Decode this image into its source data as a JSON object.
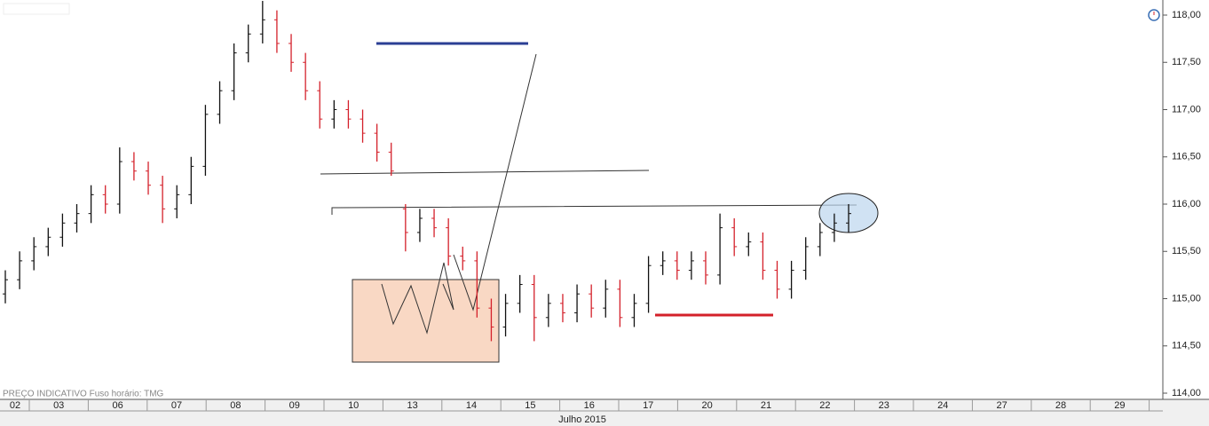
{
  "chart_data": {
    "type": "ohlc",
    "footnote": "PREÇO INDICATIVO   Fuso horário: TMG",
    "x_labels": [
      "02",
      "03",
      "06",
      "07",
      "08",
      "09",
      "10",
      "13",
      "14",
      "15",
      "16",
      "17",
      "20",
      "21",
      "22",
      "23",
      "24",
      "27",
      "28",
      "29"
    ],
    "x_title": "Julho 2015",
    "ylim": [
      114,
      118
    ],
    "yticks": [
      {
        "value": 114,
        "label": "114,00"
      },
      {
        "value": 114.5,
        "label": "114,50"
      },
      {
        "value": 115,
        "label": "115,00"
      },
      {
        "value": 115.5,
        "label": "115,50"
      },
      {
        "value": 116,
        "label": "116,00"
      },
      {
        "value": 116.5,
        "label": "116,50"
      },
      {
        "value": 117,
        "label": "117,00"
      },
      {
        "value": 117.5,
        "label": "117,50"
      },
      {
        "value": 118,
        "label": "118,00"
      }
    ],
    "up_color": "#111111",
    "down_color": "#d4202a",
    "open": [
      115.05,
      115.2,
      115.4,
      115.55,
      115.65,
      115.8,
      115.9,
      116.1,
      116.0,
      116.45,
      116.35,
      116.2,
      115.95,
      116.1,
      116.4,
      116.95,
      117.2,
      117.6,
      117.8,
      117.95,
      117.7,
      117.5,
      117.2,
      116.9,
      117.0,
      116.9,
      116.75,
      116.55,
      115.95,
      115.7,
      115.85,
      115.75,
      115.45,
      115.4,
      114.9,
      114.7,
      114.95,
      115.15,
      114.8,
      114.95,
      114.85,
      115.05,
      114.9,
      115.1,
      114.8,
      114.95,
      115.35,
      115.4,
      115.3,
      115.4,
      115.25,
      115.75,
      115.55,
      115.6,
      115.3,
      115.1,
      115.3,
      115.55,
      115.7,
      115.8
    ],
    "high": [
      115.3,
      115.5,
      115.65,
      115.75,
      115.9,
      116.0,
      116.2,
      116.2,
      116.6,
      116.55,
      116.45,
      116.3,
      116.2,
      116.5,
      117.05,
      117.3,
      117.7,
      117.9,
      118.15,
      118.05,
      117.8,
      117.6,
      117.3,
      117.1,
      117.1,
      117.0,
      116.85,
      116.65,
      116.0,
      115.95,
      115.95,
      115.85,
      115.55,
      115.5,
      115.0,
      115.05,
      115.25,
      115.25,
      115.05,
      115.05,
      115.15,
      115.15,
      115.2,
      115.2,
      115.05,
      115.45,
      115.5,
      115.5,
      115.5,
      115.5,
      115.9,
      115.85,
      115.7,
      115.7,
      115.4,
      115.4,
      115.65,
      115.8,
      115.9,
      116.0
    ],
    "low": [
      114.95,
      115.1,
      115.3,
      115.45,
      115.55,
      115.7,
      115.8,
      115.9,
      115.9,
      116.25,
      116.1,
      115.8,
      115.85,
      116.0,
      116.3,
      116.85,
      117.1,
      117.5,
      117.7,
      117.6,
      117.4,
      117.1,
      116.8,
      116.8,
      116.8,
      116.65,
      116.45,
      116.3,
      115.5,
      115.6,
      115.65,
      115.35,
      115.3,
      114.8,
      114.55,
      114.6,
      114.85,
      114.55,
      114.7,
      114.75,
      114.75,
      114.8,
      114.8,
      114.7,
      114.7,
      114.85,
      115.25,
      115.2,
      115.2,
      115.15,
      115.15,
      115.45,
      115.45,
      115.2,
      115.0,
      115.0,
      115.2,
      115.45,
      115.6,
      115.7
    ],
    "close": [
      115.2,
      115.4,
      115.55,
      115.65,
      115.8,
      115.9,
      116.1,
      116.0,
      116.45,
      116.35,
      116.2,
      115.95,
      116.1,
      116.4,
      116.95,
      117.2,
      117.6,
      117.8,
      117.95,
      117.7,
      117.5,
      117.2,
      116.9,
      117.0,
      116.9,
      116.75,
      116.55,
      116.35,
      115.7,
      115.85,
      115.75,
      115.45,
      115.4,
      114.9,
      114.7,
      114.95,
      115.15,
      114.8,
      114.95,
      114.85,
      115.05,
      114.9,
      115.1,
      114.8,
      114.95,
      115.35,
      115.4,
      115.3,
      115.4,
      115.25,
      115.75,
      115.55,
      115.6,
      115.3,
      115.1,
      115.3,
      115.55,
      115.7,
      115.8,
      115.9
    ]
  }
}
